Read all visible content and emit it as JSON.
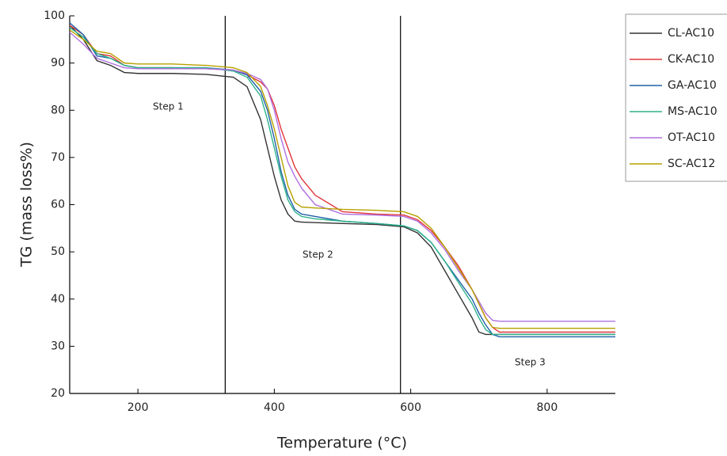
{
  "chart_data": {
    "type": "line",
    "x_label": "Temperature (°C)",
    "y_label": "TG (mass loss%)",
    "xlim": [
      100,
      900
    ],
    "ylim": [
      20,
      100
    ],
    "xticks": [
      200,
      400,
      600,
      800
    ],
    "yticks": [
      20,
      30,
      40,
      50,
      60,
      70,
      80,
      90,
      100
    ],
    "vlines": [
      328,
      585
    ],
    "annotations": [
      "Step 1",
      "Step 2",
      "Step 3"
    ],
    "x": [
      100,
      120,
      140,
      160,
      180,
      200,
      250,
      300,
      340,
      360,
      380,
      390,
      400,
      410,
      420,
      430,
      440,
      460,
      500,
      550,
      590,
      610,
      630,
      650,
      670,
      690,
      700,
      710,
      720,
      730,
      750,
      800,
      900
    ],
    "series": [
      {
        "name": "CL-AC10",
        "color": "#333333",
        "values": [
          98,
          95,
          90.5,
          89.5,
          88,
          87.8,
          87.8,
          87.6,
          87,
          85,
          78,
          72,
          66,
          61,
          58,
          56.5,
          56.3,
          56.2,
          56,
          55.8,
          55.3,
          54,
          51,
          46,
          41,
          36,
          33,
          32.5,
          32.5,
          32.5,
          32.5,
          32.5,
          32.5
        ]
      },
      {
        "name": "CK-AC10",
        "color": "#e2363c",
        "values": [
          98,
          96,
          92,
          91.5,
          89.5,
          89,
          89,
          88.8,
          88.5,
          87.5,
          86,
          84.5,
          81,
          76,
          72,
          68,
          65.5,
          62,
          58.5,
          58,
          57.8,
          56.8,
          54.5,
          51,
          47,
          42,
          39,
          36,
          34,
          33,
          33,
          33,
          33
        ]
      },
      {
        "name": "GA-AC10",
        "color": "#2060a8",
        "values": [
          98.5,
          96,
          91.5,
          91,
          89.5,
          89,
          89,
          89,
          88.5,
          87.5,
          84,
          80,
          74,
          67,
          62,
          59,
          58,
          57.5,
          56.5,
          56,
          55.5,
          54.5,
          52,
          48,
          44,
          40,
          37,
          34.5,
          32.5,
          32,
          32,
          32,
          32
        ]
      },
      {
        "name": "MS-AC10",
        "color": "#2db38a",
        "values": [
          97.5,
          95.5,
          92,
          91,
          89.5,
          89,
          89,
          89,
          88.3,
          87,
          83,
          78,
          72,
          66,
          61,
          58.5,
          57.5,
          57,
          56.5,
          56,
          55.5,
          54.5,
          52,
          48,
          43.5,
          39,
          36,
          33.5,
          32.5,
          32.5,
          32.5,
          32.5,
          32.5
        ]
      },
      {
        "name": "OT-AC10",
        "color": "#b070e0",
        "values": [
          96.5,
          94,
          91,
          90,
          89,
          88.8,
          88.8,
          88.8,
          88.5,
          87.8,
          86.5,
          84.5,
          80,
          74,
          69,
          66,
          63.5,
          60,
          58,
          57.8,
          57.5,
          56.5,
          54,
          50.5,
          46,
          42,
          39.5,
          37,
          35.5,
          35.3,
          35.3,
          35.3,
          35.3
        ]
      },
      {
        "name": "SC-AC12",
        "color": "#b8a000",
        "values": [
          97,
          95,
          92.5,
          92,
          90,
          89.8,
          89.8,
          89.5,
          89,
          88,
          85,
          81,
          76,
          70,
          64,
          60.5,
          59.5,
          59.3,
          59,
          58.8,
          58.5,
          57.5,
          55,
          51,
          46.5,
          42,
          39,
          36,
          34,
          33.8,
          33.8,
          33.8,
          33.8
        ]
      }
    ]
  }
}
